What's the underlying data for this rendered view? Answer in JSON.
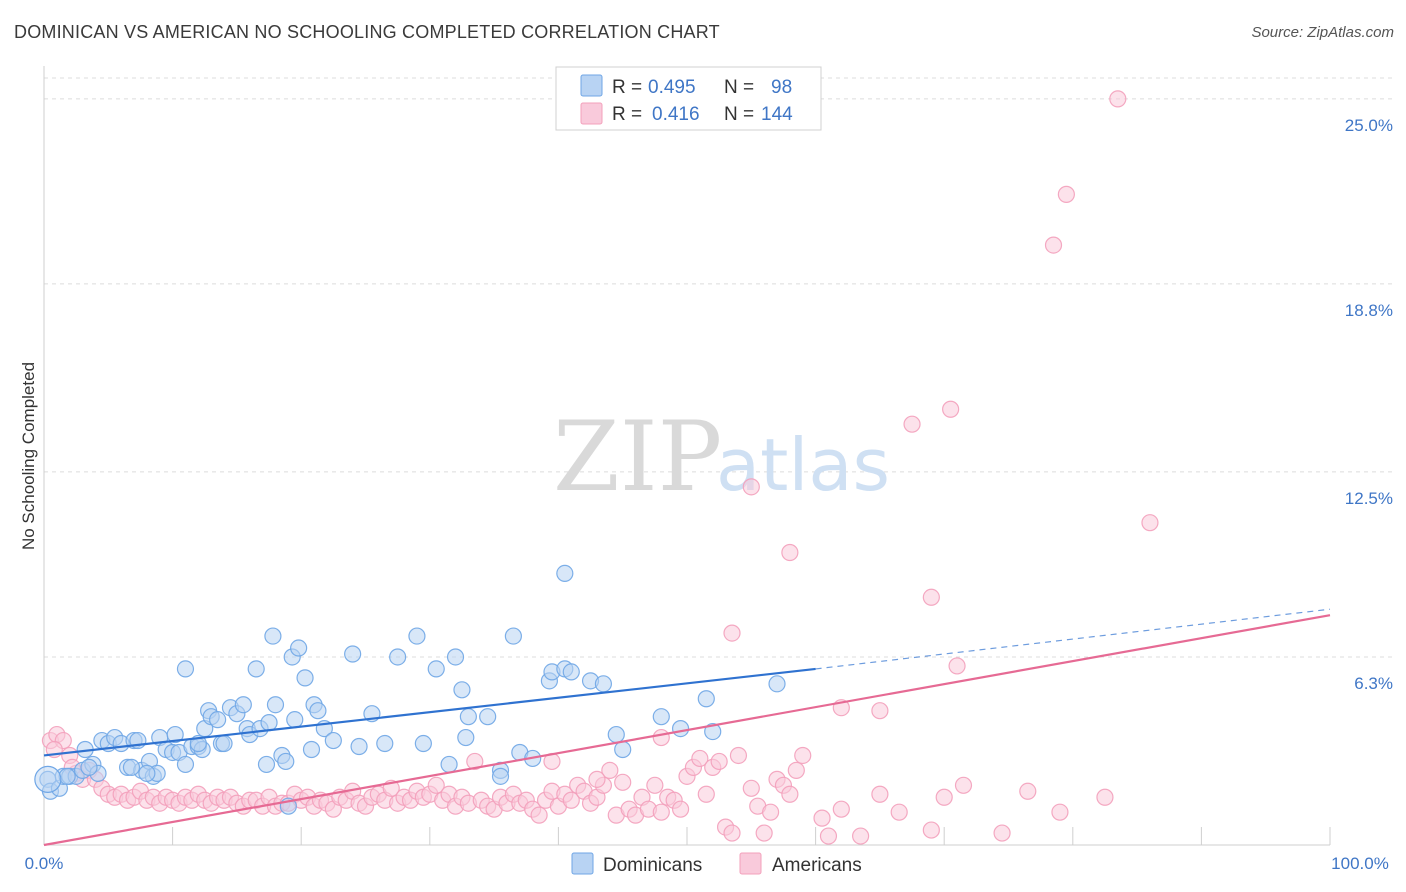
{
  "title": "DOMINICAN VS AMERICAN NO SCHOOLING COMPLETED CORRELATION CHART",
  "source": "Source: ZipAtlas.com",
  "watermark": {
    "zip": "ZIP",
    "atlas": "atlas"
  },
  "colors": {
    "dominicans": "#6fa6e6",
    "dominicans_fill": "#b8d3f3",
    "dominicans_line": "#2f72d0",
    "americans": "#f3a0bb",
    "americans_fill": "#f9cadb",
    "americans_line": "#e66a94",
    "tick_text": "#3f76c6",
    "grid": "#dcdcdc"
  },
  "legend": {
    "rows": [
      {
        "r_label": "R =",
        "r_value": "0.495",
        "n_label": "N =",
        "n_value": "98"
      },
      {
        "r_label": "R =",
        "r_value": "0.416",
        "n_label": "N =",
        "n_value": "144"
      }
    ]
  },
  "bottom_legend": [
    "Dominicans",
    "Americans"
  ],
  "chart_data": {
    "type": "scatter",
    "title": "DOMINICAN VS AMERICAN NO SCHOOLING COMPLETED CORRELATION CHART",
    "xlabel": "",
    "ylabel": "No Schooling Completed",
    "x_tick_labels": [
      "0.0%",
      "100.0%"
    ],
    "y_tick_labels": [
      "6.3%",
      "12.5%",
      "18.8%",
      "25.0%"
    ],
    "y_ticks": [
      6.3,
      12.5,
      18.8,
      25.0
    ],
    "xlim": [
      0,
      100
    ],
    "ylim": [
      0,
      25.9
    ],
    "grid": true,
    "legend_position": "top-center",
    "series": [
      {
        "name": "Dominicans",
        "r": 0.495,
        "n": 98,
        "trend": {
          "x0": 0,
          "y0": 3.0,
          "x1": 60,
          "y1": 5.9,
          "dash_x1": 100,
          "dash_y1": 7.9
        },
        "points": [
          [
            0.3,
            2.2
          ],
          [
            0.5,
            1.8
          ],
          [
            1.2,
            1.9
          ],
          [
            1.5,
            2.3
          ],
          [
            2.0,
            2.3
          ],
          [
            2.5,
            2.3
          ],
          [
            3.0,
            2.5
          ],
          [
            3.2,
            3.2
          ],
          [
            3.8,
            2.7
          ],
          [
            4.5,
            3.5
          ],
          [
            5.0,
            3.4
          ],
          [
            5.5,
            3.6
          ],
          [
            6.0,
            3.4
          ],
          [
            6.5,
            2.6
          ],
          [
            7.0,
            3.5
          ],
          [
            7.3,
            3.5
          ],
          [
            7.6,
            2.5
          ],
          [
            8.2,
            2.8
          ],
          [
            8.5,
            2.3
          ],
          [
            8.8,
            2.4
          ],
          [
            9.0,
            3.6
          ],
          [
            9.5,
            3.2
          ],
          [
            10.0,
            3.1
          ],
          [
            10.2,
            3.7
          ],
          [
            10.5,
            3.1
          ],
          [
            11.0,
            5.9
          ],
          [
            11.0,
            2.7
          ],
          [
            11.5,
            3.3
          ],
          [
            12.0,
            3.3
          ],
          [
            12.3,
            3.2
          ],
          [
            12.5,
            3.9
          ],
          [
            12.8,
            4.5
          ],
          [
            13.0,
            4.3
          ],
          [
            13.5,
            4.2
          ],
          [
            13.8,
            3.4
          ],
          [
            14.0,
            3.4
          ],
          [
            14.5,
            4.6
          ],
          [
            15.0,
            4.4
          ],
          [
            15.5,
            4.7
          ],
          [
            15.8,
            3.9
          ],
          [
            16.0,
            3.7
          ],
          [
            16.5,
            5.9
          ],
          [
            16.8,
            3.9
          ],
          [
            17.3,
            2.7
          ],
          [
            17.5,
            4.1
          ],
          [
            17.8,
            7.0
          ],
          [
            18.0,
            4.7
          ],
          [
            18.5,
            3.0
          ],
          [
            18.8,
            2.8
          ],
          [
            19.0,
            1.3
          ],
          [
            19.3,
            6.3
          ],
          [
            19.5,
            4.2
          ],
          [
            19.8,
            6.6
          ],
          [
            20.3,
            5.6
          ],
          [
            20.8,
            3.2
          ],
          [
            21.0,
            4.7
          ],
          [
            21.3,
            4.5
          ],
          [
            21.8,
            3.9
          ],
          [
            22.5,
            3.5
          ],
          [
            24.0,
            6.4
          ],
          [
            24.5,
            3.3
          ],
          [
            25.5,
            4.4
          ],
          [
            26.5,
            3.4
          ],
          [
            27.5,
            6.3
          ],
          [
            29.0,
            7.0
          ],
          [
            29.5,
            3.4
          ],
          [
            30.5,
            5.9
          ],
          [
            31.5,
            2.7
          ],
          [
            32.0,
            6.3
          ],
          [
            32.5,
            5.2
          ],
          [
            32.8,
            3.6
          ],
          [
            33.0,
            4.3
          ],
          [
            34.5,
            4.3
          ],
          [
            35.5,
            2.5
          ],
          [
            35.5,
            2.3
          ],
          [
            36.5,
            7.0
          ],
          [
            37.0,
            3.1
          ],
          [
            38.0,
            2.9
          ],
          [
            39.3,
            5.5
          ],
          [
            39.5,
            5.8
          ],
          [
            40.5,
            9.1
          ],
          [
            40.5,
            5.9
          ],
          [
            41.0,
            5.8
          ],
          [
            42.5,
            5.5
          ],
          [
            43.5,
            5.4
          ],
          [
            44.5,
            3.7
          ],
          [
            45.0,
            3.2
          ],
          [
            48.0,
            4.3
          ],
          [
            49.5,
            3.9
          ],
          [
            51.5,
            4.9
          ],
          [
            52.0,
            3.8
          ],
          [
            57.0,
            5.4
          ],
          [
            12.0,
            3.4
          ],
          [
            8.0,
            2.4
          ],
          [
            6.8,
            2.6
          ],
          [
            4.2,
            2.4
          ],
          [
            3.5,
            2.6
          ],
          [
            1.8,
            2.3
          ]
        ]
      },
      {
        "name": "Americans",
        "r": 0.416,
        "n": 144,
        "trend": {
          "x0": 0,
          "y0": 0.0,
          "x1": 100,
          "y1": 7.7
        },
        "points": [
          [
            0.5,
            3.5
          ],
          [
            1.0,
            3.7
          ],
          [
            1.5,
            3.5
          ],
          [
            2.0,
            3.0
          ],
          [
            2.5,
            2.4
          ],
          [
            3.0,
            2.2
          ],
          [
            3.5,
            2.5
          ],
          [
            4.0,
            2.2
          ],
          [
            4.5,
            1.9
          ],
          [
            5.0,
            1.7
          ],
          [
            5.5,
            1.6
          ],
          [
            6.0,
            1.7
          ],
          [
            6.5,
            1.5
          ],
          [
            7.0,
            1.6
          ],
          [
            7.5,
            1.8
          ],
          [
            8.0,
            1.5
          ],
          [
            8.5,
            1.6
          ],
          [
            9.0,
            1.4
          ],
          [
            9.5,
            1.6
          ],
          [
            10.0,
            1.5
          ],
          [
            10.5,
            1.4
          ],
          [
            11.0,
            1.6
          ],
          [
            11.5,
            1.5
          ],
          [
            12.0,
            1.7
          ],
          [
            12.5,
            1.5
          ],
          [
            13.0,
            1.4
          ],
          [
            13.5,
            1.6
          ],
          [
            14.0,
            1.5
          ],
          [
            14.5,
            1.6
          ],
          [
            15.0,
            1.4
          ],
          [
            15.5,
            1.3
          ],
          [
            16.0,
            1.5
          ],
          [
            16.5,
            1.5
          ],
          [
            17.0,
            1.3
          ],
          [
            17.5,
            1.6
          ],
          [
            18.0,
            1.3
          ],
          [
            18.5,
            1.4
          ],
          [
            19.0,
            1.4
          ],
          [
            19.5,
            1.7
          ],
          [
            20.0,
            1.5
          ],
          [
            20.5,
            1.6
          ],
          [
            21.0,
            1.3
          ],
          [
            21.5,
            1.5
          ],
          [
            22.0,
            1.4
          ],
          [
            22.5,
            1.2
          ],
          [
            23.0,
            1.6
          ],
          [
            23.5,
            1.5
          ],
          [
            24.0,
            1.8
          ],
          [
            24.5,
            1.4
          ],
          [
            25.0,
            1.3
          ],
          [
            25.5,
            1.6
          ],
          [
            26.0,
            1.7
          ],
          [
            26.5,
            1.5
          ],
          [
            27.0,
            1.9
          ],
          [
            27.5,
            1.4
          ],
          [
            28.0,
            1.6
          ],
          [
            28.5,
            1.5
          ],
          [
            29.0,
            1.8
          ],
          [
            29.5,
            1.6
          ],
          [
            30.0,
            1.7
          ],
          [
            30.5,
            2.0
          ],
          [
            31.0,
            1.5
          ],
          [
            31.5,
            1.7
          ],
          [
            32.0,
            1.3
          ],
          [
            32.5,
            1.6
          ],
          [
            33.0,
            1.4
          ],
          [
            33.5,
            2.8
          ],
          [
            34.0,
            1.5
          ],
          [
            34.5,
            1.3
          ],
          [
            35.0,
            1.2
          ],
          [
            35.5,
            1.6
          ],
          [
            36.0,
            1.4
          ],
          [
            36.5,
            1.7
          ],
          [
            37.0,
            1.4
          ],
          [
            37.5,
            1.5
          ],
          [
            38.0,
            1.2
          ],
          [
            38.5,
            1.0
          ],
          [
            39.0,
            1.5
          ],
          [
            39.5,
            1.8
          ],
          [
            40.0,
            1.3
          ],
          [
            40.5,
            1.7
          ],
          [
            41.0,
            1.5
          ],
          [
            41.5,
            2.0
          ],
          [
            42.0,
            1.8
          ],
          [
            42.5,
            1.4
          ],
          [
            43.0,
            1.6
          ],
          [
            43.5,
            2.0
          ],
          [
            44.0,
            2.5
          ],
          [
            44.5,
            1.0
          ],
          [
            45.0,
            2.1
          ],
          [
            45.5,
            1.2
          ],
          [
            46.0,
            1.0
          ],
          [
            46.5,
            1.6
          ],
          [
            47.0,
            1.2
          ],
          [
            47.5,
            2.0
          ],
          [
            48.0,
            1.1
          ],
          [
            48.5,
            1.6
          ],
          [
            49.0,
            1.5
          ],
          [
            49.5,
            1.2
          ],
          [
            50.0,
            2.3
          ],
          [
            50.5,
            2.6
          ],
          [
            51.0,
            2.9
          ],
          [
            51.5,
            1.7
          ],
          [
            52.0,
            2.6
          ],
          [
            52.5,
            2.8
          ],
          [
            53.0,
            0.6
          ],
          [
            53.5,
            0.4
          ],
          [
            54.0,
            3.0
          ],
          [
            55.0,
            1.9
          ],
          [
            55.5,
            1.3
          ],
          [
            56.0,
            0.4
          ],
          [
            56.5,
            1.1
          ],
          [
            57.0,
            2.2
          ],
          [
            57.5,
            2.0
          ],
          [
            58.0,
            1.7
          ],
          [
            58.5,
            2.5
          ],
          [
            59.0,
            3.0
          ],
          [
            60.5,
            0.9
          ],
          [
            61.0,
            0.3
          ],
          [
            62.0,
            1.2
          ],
          [
            63.5,
            0.3
          ],
          [
            65.0,
            1.7
          ],
          [
            66.5,
            1.1
          ],
          [
            69.0,
            0.5
          ],
          [
            70.0,
            1.6
          ],
          [
            71.5,
            2.0
          ],
          [
            74.5,
            0.4
          ],
          [
            76.5,
            1.8
          ],
          [
            79.0,
            1.1
          ],
          [
            82.5,
            1.6
          ],
          [
            39.5,
            2.8
          ],
          [
            43.0,
            2.2
          ],
          [
            48.0,
            3.6
          ],
          [
            53.5,
            7.1
          ],
          [
            55.0,
            12.0
          ],
          [
            58.0,
            9.8
          ],
          [
            62.0,
            4.6
          ],
          [
            65.0,
            4.5
          ],
          [
            67.5,
            14.1
          ],
          [
            69.0,
            8.3
          ],
          [
            70.5,
            14.6
          ],
          [
            71.0,
            6.0
          ],
          [
            78.5,
            20.1
          ],
          [
            79.5,
            21.8
          ],
          [
            83.5,
            25.0
          ],
          [
            86.0,
            10.8
          ],
          [
            0.8,
            3.2
          ],
          [
            2.2,
            2.6
          ]
        ]
      }
    ]
  }
}
